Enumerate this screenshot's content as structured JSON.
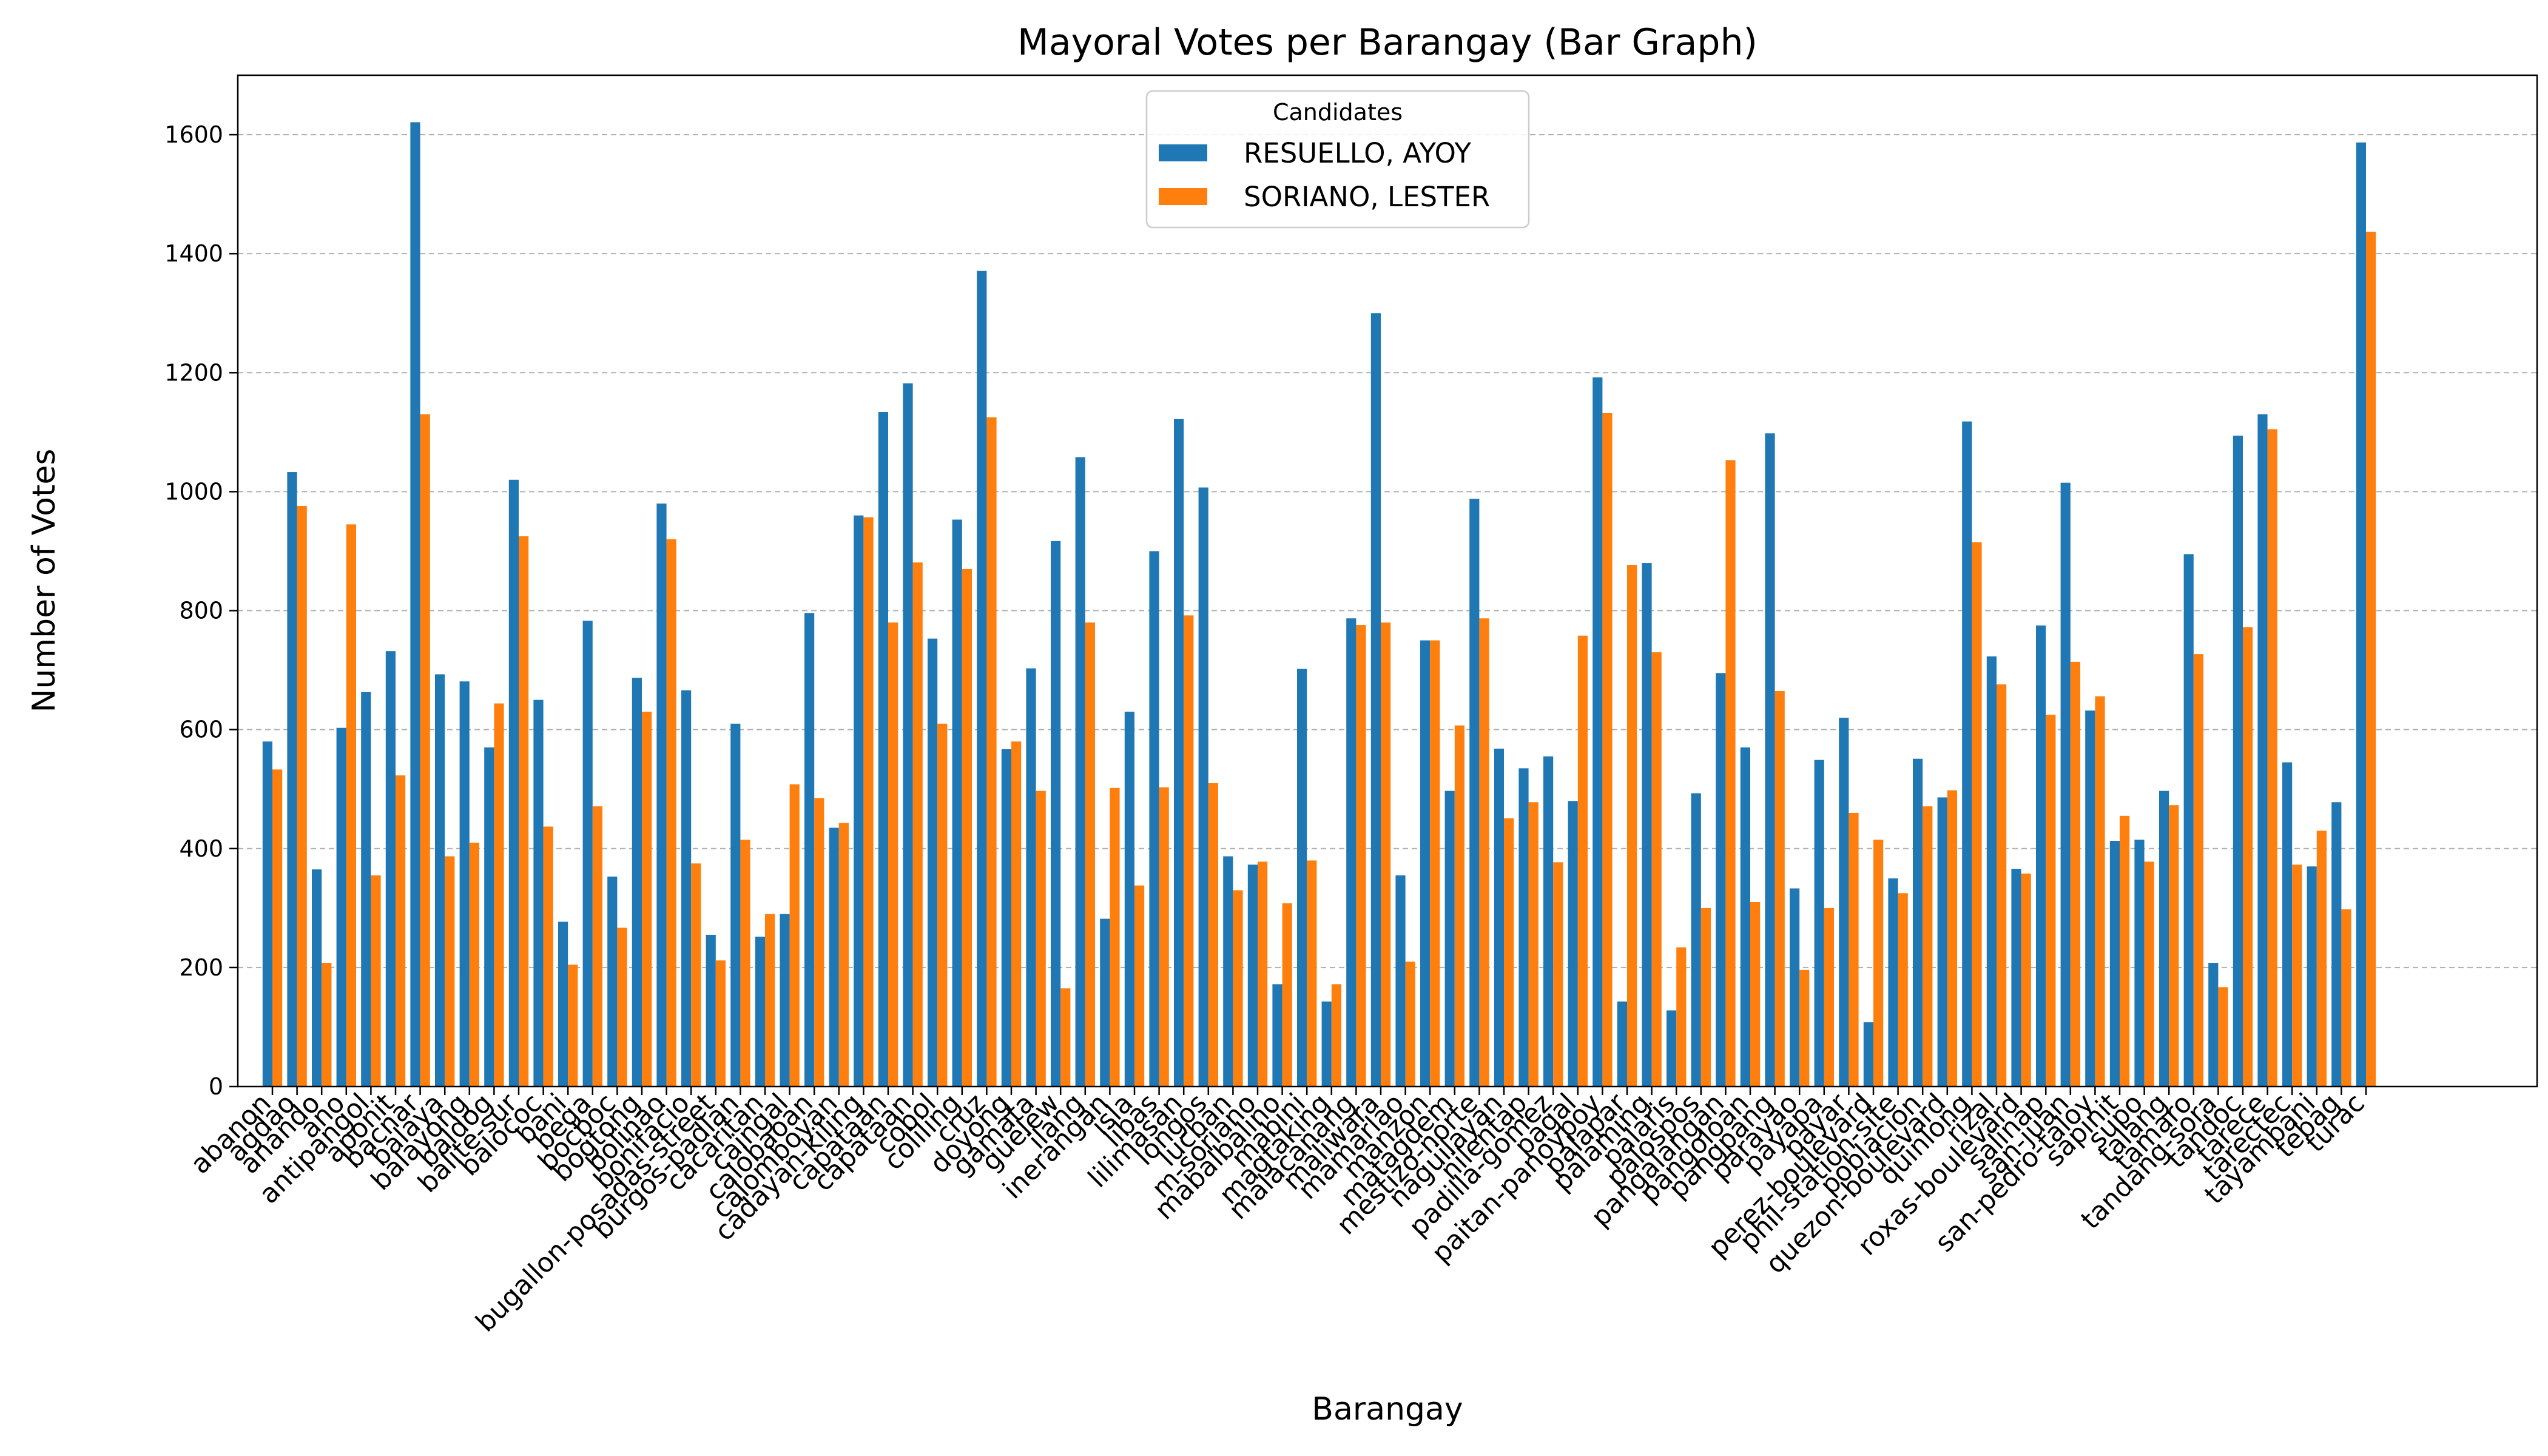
{
  "chart_data": {
    "type": "bar",
    "title": "Mayoral Votes per Barangay (Bar Graph)",
    "xlabel": "Barangay",
    "ylabel": "Number of Votes",
    "ylim": [
      0,
      1700
    ],
    "yticks": [
      0,
      200,
      400,
      600,
      800,
      1000,
      1200,
      1400,
      1600
    ],
    "grid": "y-dashed",
    "legend": {
      "title": "Candidates",
      "position": "top-center"
    },
    "categories": [
      "abanon",
      "agdao",
      "anando",
      "ano",
      "antipangol",
      "aponit",
      "bacnar",
      "balaya",
      "balayong",
      "baldog",
      "balite-sur",
      "balococ",
      "bani",
      "bega",
      "bocboc",
      "bogtong",
      "bolinao",
      "bonifacio",
      "bugallon-posadas-street",
      "burgos-padlan",
      "cacaritan",
      "caingal",
      "calobaoan",
      "calomboyan",
      "cadayan-kiling",
      "capataan",
      "capataan",
      "cobol",
      "coliling",
      "cruz",
      "doyong",
      "gamata",
      "guelew",
      "ilang",
      "inerangan",
      "isla",
      "libas",
      "lilimasan",
      "longos",
      "lucban",
      "m-soriano",
      "mabalbalino",
      "mabini",
      "magtaking",
      "malacanang",
      "maliwara",
      "mamarlao",
      "manzon",
      "matagdem",
      "mestizo-norte",
      "naguilayan",
      "nilentap",
      "padilla-gomez",
      "pagal",
      "paitan-panoypoy",
      "palapar",
      "palaming",
      "palaris",
      "palospos",
      "pangalangan",
      "pangoloan",
      "pangpang",
      "parayao",
      "payapa",
      "payar",
      "perez-boulevard",
      "phil-station-site",
      "poblacion",
      "quezon-boulevard",
      "quinlong",
      "rizal",
      "roxas-boulevard",
      "salinap",
      "san-juan",
      "san-pedro-taloy",
      "sapinit",
      "supo",
      "talang",
      "tamaro",
      "tandang-sora",
      "tandoc",
      "tarece",
      "tarectec",
      "tayambani",
      "tebag",
      "turac"
    ],
    "series": [
      {
        "name": "RESUELLO, AYOY",
        "color": "#1f77b4",
        "values": [
          580,
          1033,
          365,
          603,
          663,
          732,
          1621,
          693,
          681,
          570,
          1020,
          650,
          277,
          783,
          353,
          687,
          980,
          666,
          255,
          610,
          252,
          290,
          796,
          435,
          960,
          1134,
          1182,
          753,
          953,
          1371,
          567,
          703,
          917,
          1058,
          282,
          630,
          900,
          1122,
          1007,
          387,
          373,
          172,
          702,
          143,
          787,
          1300,
          355,
          750,
          497,
          988,
          568,
          535,
          555,
          480,
          1192,
          143,
          880,
          128,
          493,
          695,
          570,
          1098,
          333,
          549,
          620,
          108,
          350,
          551,
          486,
          1118,
          723,
          366,
          775,
          1015,
          632,
          413,
          415,
          497,
          895,
          208,
          1094,
          1130,
          545,
          370,
          478,
          1587
        ]
      },
      {
        "name": "SORIANO, LESTER",
        "color": "#ff7f0e",
        "values": [
          533,
          976,
          208,
          945,
          355,
          523,
          1130,
          387,
          410,
          644,
          925,
          437,
          205,
          471,
          267,
          630,
          920,
          375,
          212,
          415,
          290,
          508,
          485,
          443,
          957,
          780,
          881,
          610,
          870,
          1125,
          580,
          497,
          165,
          780,
          502,
          338,
          503,
          792,
          510,
          330,
          378,
          308,
          380,
          172,
          776,
          780,
          210,
          750,
          607,
          787,
          451,
          478,
          377,
          758,
          1132,
          877,
          730,
          234,
          300,
          1053,
          310,
          665,
          196,
          300,
          460,
          415,
          325,
          471,
          498,
          915,
          676,
          358,
          625,
          714,
          656,
          455,
          378,
          473,
          727,
          167,
          772,
          1105,
          373,
          430,
          298,
          1437
        ]
      }
    ]
  }
}
